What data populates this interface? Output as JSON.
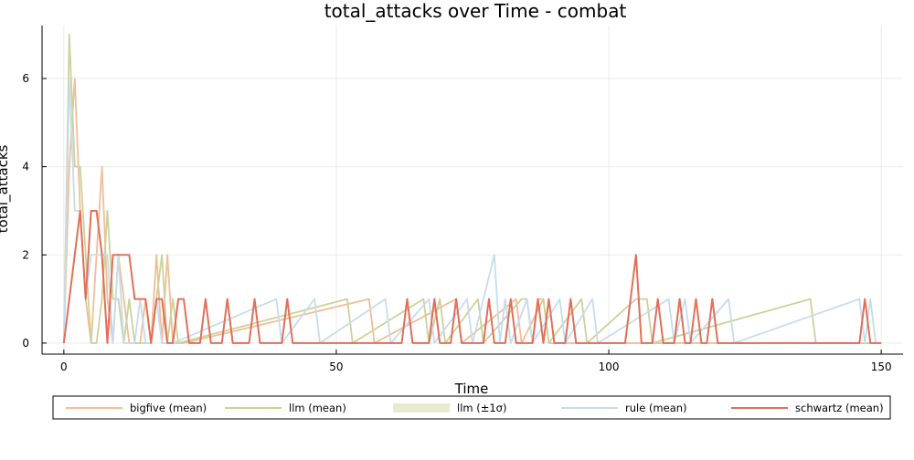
{
  "chart_data": {
    "type": "line",
    "title": "total_attacks over Time - combat",
    "xlabel": "Time",
    "ylabel": "total_attacks",
    "xlim": [
      -4,
      154
    ],
    "ylim": [
      -0.25,
      7.2
    ],
    "xticks": [
      0,
      50,
      100,
      150
    ],
    "yticks": [
      0,
      2,
      4,
      6
    ],
    "grid": true,
    "legend_position": "bottom",
    "series": [
      {
        "name": "bigfive (mean)",
        "color": "#f3bd96",
        "points": [
          [
            0,
            0
          ],
          [
            1,
            4
          ],
          [
            2,
            6
          ],
          [
            3,
            3
          ],
          [
            4,
            1
          ],
          [
            5,
            0
          ],
          [
            6,
            2
          ],
          [
            7,
            4
          ],
          [
            8,
            1
          ],
          [
            9,
            0
          ],
          [
            10,
            2
          ],
          [
            11,
            1
          ],
          [
            12,
            0
          ],
          [
            13,
            0
          ],
          [
            14,
            0
          ],
          [
            15,
            1
          ],
          [
            16,
            0
          ],
          [
            17,
            2
          ],
          [
            18,
            0
          ],
          [
            19,
            2
          ],
          [
            20,
            0
          ],
          [
            21,
            0
          ],
          [
            22,
            0
          ],
          [
            56,
            1
          ],
          [
            57,
            0
          ],
          [
            72,
            1
          ],
          [
            73,
            0
          ],
          [
            83,
            1
          ],
          [
            84,
            0
          ],
          [
            88,
            1
          ],
          [
            89,
            0
          ]
        ]
      },
      {
        "name": "llm (mean)",
        "color": "#cbd29a",
        "points": [
          [
            0,
            0
          ],
          [
            1,
            7
          ],
          [
            2,
            4
          ],
          [
            3,
            4
          ],
          [
            4,
            2
          ],
          [
            5,
            0
          ],
          [
            6,
            0
          ],
          [
            7,
            1
          ],
          [
            8,
            3
          ],
          [
            9,
            1
          ],
          [
            10,
            1
          ],
          [
            11,
            0
          ],
          [
            12,
            1
          ],
          [
            13,
            0
          ],
          [
            14,
            0
          ],
          [
            15,
            0
          ],
          [
            16,
            0
          ],
          [
            17,
            1
          ],
          [
            18,
            2
          ],
          [
            19,
            0
          ],
          [
            20,
            1
          ],
          [
            21,
            0
          ],
          [
            52,
            1
          ],
          [
            53,
            0
          ],
          [
            66,
            1
          ],
          [
            67,
            0
          ],
          [
            69,
            1
          ],
          [
            70,
            0
          ],
          [
            76,
            1
          ],
          [
            77,
            0
          ],
          [
            84,
            1
          ],
          [
            85,
            1
          ],
          [
            86,
            0
          ],
          [
            87,
            1
          ],
          [
            88,
            1
          ],
          [
            89,
            0
          ],
          [
            95,
            1
          ],
          [
            96,
            0
          ],
          [
            105,
            1
          ],
          [
            106,
            1
          ],
          [
            107,
            1
          ],
          [
            108,
            0
          ],
          [
            137,
            1
          ],
          [
            138,
            0
          ]
        ]
      },
      {
        "name": "llm (±1σ)",
        "color": "#e8ebcf",
        "points": []
      },
      {
        "name": "rule (mean)",
        "color": "#c6dcec",
        "points": [
          [
            0,
            0
          ],
          [
            1,
            6
          ],
          [
            2,
            3
          ],
          [
            3,
            3
          ],
          [
            4,
            1
          ],
          [
            5,
            2
          ],
          [
            6,
            2
          ],
          [
            7,
            2
          ],
          [
            8,
            2
          ],
          [
            9,
            0
          ],
          [
            10,
            2
          ],
          [
            11,
            0
          ],
          [
            12,
            0
          ],
          [
            13,
            0
          ],
          [
            14,
            1
          ],
          [
            15,
            0
          ],
          [
            16,
            0
          ],
          [
            17,
            1
          ],
          [
            18,
            0
          ],
          [
            19,
            0
          ],
          [
            20,
            0
          ],
          [
            39,
            1
          ],
          [
            40,
            0
          ],
          [
            46,
            1
          ],
          [
            47,
            0
          ],
          [
            59,
            1
          ],
          [
            60,
            0
          ],
          [
            67,
            1
          ],
          [
            68,
            0
          ],
          [
            74,
            1
          ],
          [
            75,
            0
          ],
          [
            79,
            2
          ],
          [
            80,
            0
          ],
          [
            81,
            1
          ],
          [
            82,
            0
          ],
          [
            85,
            1
          ],
          [
            86,
            0
          ],
          [
            91,
            1
          ],
          [
            92,
            0
          ],
          [
            97,
            1
          ],
          [
            98,
            0
          ],
          [
            111,
            1
          ],
          [
            112,
            0
          ],
          [
            114,
            1
          ],
          [
            115,
            0
          ],
          [
            122,
            1
          ],
          [
            123,
            0
          ],
          [
            146,
            1
          ],
          [
            147,
            0
          ],
          [
            148,
            1
          ],
          [
            149,
            0
          ]
        ]
      },
      {
        "name": "schwartz (mean)",
        "color": "#e26f58",
        "points": [
          [
            0,
            0
          ],
          [
            1,
            1
          ],
          [
            2,
            2
          ],
          [
            3,
            3
          ],
          [
            4,
            1
          ],
          [
            5,
            3
          ],
          [
            6,
            3
          ],
          [
            7,
            2
          ],
          [
            8,
            0
          ],
          [
            9,
            2
          ],
          [
            10,
            2
          ],
          [
            11,
            2
          ],
          [
            12,
            2
          ],
          [
            13,
            1
          ],
          [
            14,
            1
          ],
          [
            15,
            1
          ],
          [
            16,
            0
          ],
          [
            17,
            1
          ],
          [
            18,
            1
          ],
          [
            19,
            0
          ],
          [
            20,
            0
          ],
          [
            21,
            1
          ],
          [
            22,
            1
          ],
          [
            23,
            0
          ],
          [
            24,
            0
          ],
          [
            25,
            0
          ],
          [
            26,
            1
          ],
          [
            27,
            0
          ],
          [
            28,
            0
          ],
          [
            29,
            0
          ],
          [
            30,
            1
          ],
          [
            31,
            0
          ],
          [
            34,
            0
          ],
          [
            35,
            1
          ],
          [
            36,
            0
          ],
          [
            40,
            0
          ],
          [
            41,
            1
          ],
          [
            42,
            0
          ],
          [
            62,
            0
          ],
          [
            63,
            1
          ],
          [
            64,
            0
          ],
          [
            67,
            0
          ],
          [
            68,
            1
          ],
          [
            69,
            0
          ],
          [
            71,
            0
          ],
          [
            72,
            1
          ],
          [
            73,
            0
          ],
          [
            77,
            0
          ],
          [
            78,
            1
          ],
          [
            79,
            0
          ],
          [
            81,
            0
          ],
          [
            82,
            1
          ],
          [
            83,
            0
          ],
          [
            86,
            0
          ],
          [
            87,
            1
          ],
          [
            88,
            0
          ],
          [
            89,
            1
          ],
          [
            90,
            0
          ],
          [
            92,
            0
          ],
          [
            93,
            1
          ],
          [
            94,
            0
          ],
          [
            103,
            0
          ],
          [
            105,
            2
          ],
          [
            106,
            0
          ],
          [
            108,
            0
          ],
          [
            109,
            1
          ],
          [
            110,
            0
          ],
          [
            112,
            0
          ],
          [
            113,
            1
          ],
          [
            114,
            0
          ],
          [
            115,
            0
          ],
          [
            116,
            1
          ],
          [
            117,
            0
          ],
          [
            118,
            0
          ],
          [
            119,
            1
          ],
          [
            120,
            0
          ],
          [
            146,
            0
          ],
          [
            147,
            1
          ],
          [
            148,
            0
          ],
          [
            150,
            0
          ]
        ]
      }
    ]
  }
}
